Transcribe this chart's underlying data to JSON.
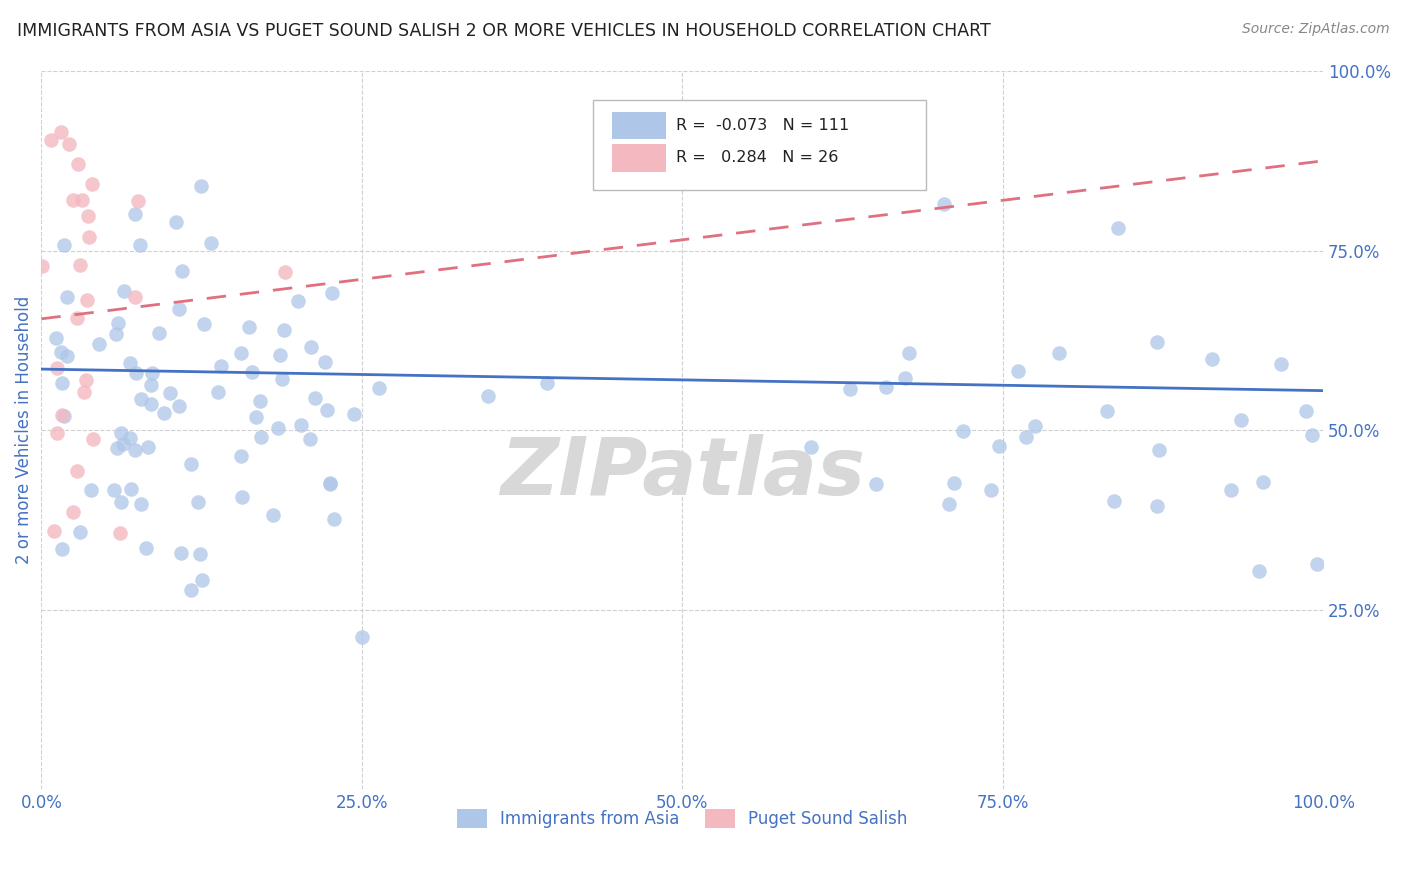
{
  "title": "IMMIGRANTS FROM ASIA VS PUGET SOUND SALISH 2 OR MORE VEHICLES IN HOUSEHOLD CORRELATION CHART",
  "source": "Source: ZipAtlas.com",
  "ylabel": "2 or more Vehicles in Household",
  "blue_R": -0.073,
  "blue_N": 111,
  "pink_R": 0.284,
  "pink_N": 26,
  "blue_color": "#aec6e8",
  "pink_color": "#f4b8c1",
  "blue_line_color": "#4472c4",
  "pink_line_color": "#e07080",
  "legend_blue_label": "Immigrants from Asia",
  "legend_pink_label": "Puget Sound Salish",
  "title_color": "#222222",
  "source_color": "#888888",
  "axis_label_color": "#4472c4",
  "tick_label_color": "#4472c4",
  "background_color": "#ffffff",
  "grid_color": "#d0d0d0",
  "watermark_text": "ZIPatlas",
  "watermark_color": "#d8d8d8",
  "blue_line_y0": 0.585,
  "blue_line_y1": 0.555,
  "pink_line_y0": 0.655,
  "pink_line_y1": 0.875,
  "xlim": [
    0.0,
    1.0
  ],
  "ylim": [
    0.0,
    1.0
  ]
}
